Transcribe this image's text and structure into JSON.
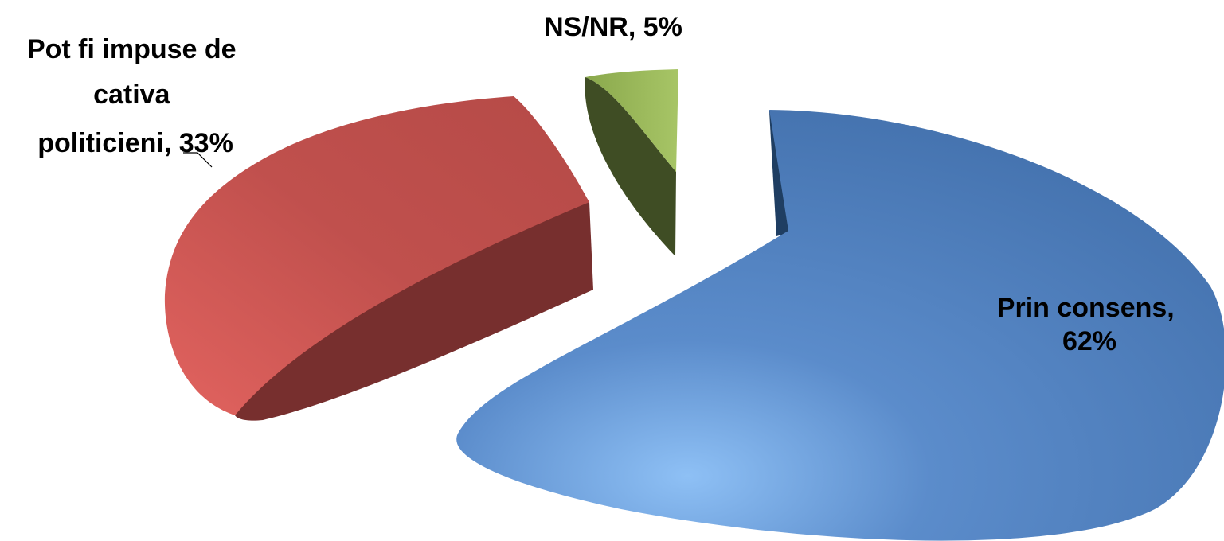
{
  "chart_data": {
    "type": "pie",
    "style": "3d-exploded",
    "title": "",
    "slices": [
      {
        "name": "Prin consens",
        "value": 62,
        "label_lines": [
          "Prin consens,",
          "62%"
        ],
        "color": "#4f81bd",
        "side_color": "#1f3e62"
      },
      {
        "name": "Pot fi impuse de cativa politicieni",
        "value": 33,
        "label_lines": [
          "Pot fi impuse de",
          "cativa",
          "politicieni, 33%"
        ],
        "color": "#c0504d",
        "side_color": "#772f2e"
      },
      {
        "name": "NS/NR",
        "value": 5,
        "label_lines": [
          "NS/NR, 5%"
        ],
        "color": "#9bbb59",
        "side_color": "#3f4d24"
      }
    ]
  }
}
